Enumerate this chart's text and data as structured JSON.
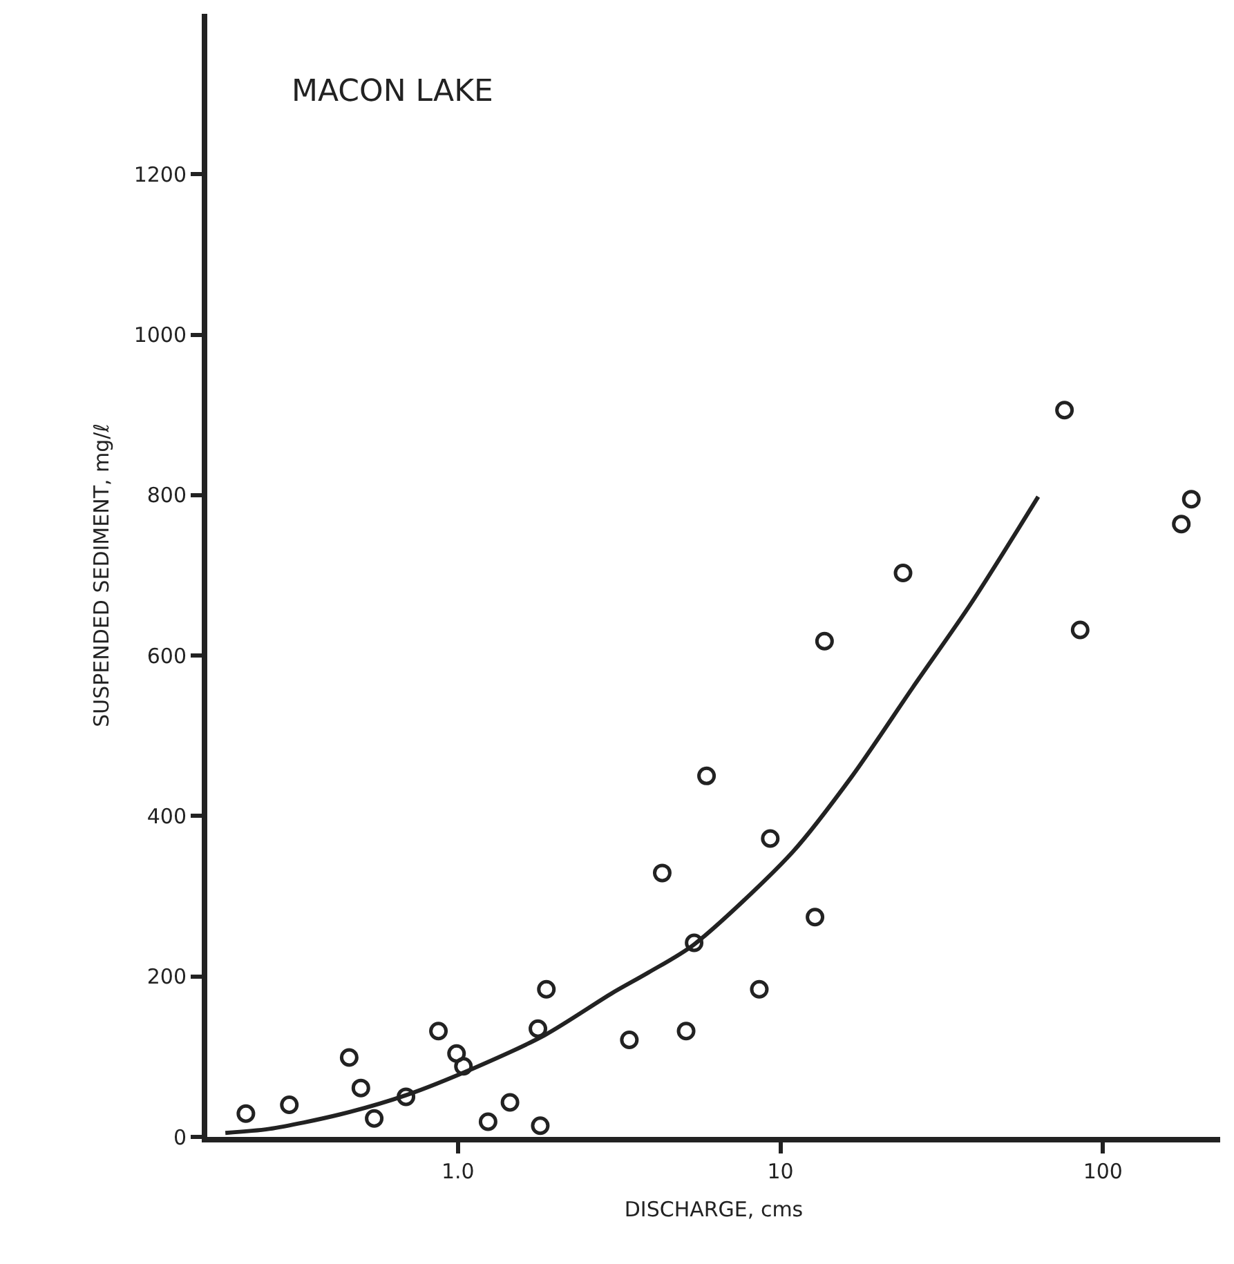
{
  "chart_data": {
    "type": "scatter",
    "xlabel": "DISCHARGE, cms",
    "ylabel": "SUSPENDED SEDIMENT, mg/ℓ",
    "annotations": [
      "MACON LAKE"
    ],
    "log": "x",
    "xlim": [
      0.167,
      231
    ],
    "ylim": [
      0,
      1400
    ],
    "xticks": [
      {
        "value": 1,
        "label": "1.0"
      },
      10,
      100
    ],
    "yticks": [
      0,
      200,
      400,
      600,
      800,
      1000,
      1200
    ],
    "marker": "circle",
    "series": [
      {
        "color": "#222222",
        "x": [
          0.22,
          0.3,
          0.46,
          0.5,
          0.55,
          0.69,
          0.87,
          0.99,
          1.04,
          1.24,
          1.45,
          1.8,
          1.77,
          1.88,
          3.4,
          5.1,
          8.6,
          5.4,
          12.8,
          4.3,
          5.9,
          9.3,
          13.7,
          24,
          76,
          85,
          175,
          188
        ],
        "values": [
          29,
          40,
          99,
          61,
          23,
          50,
          132,
          104,
          88,
          19,
          43,
          14,
          135,
          184,
          121,
          132,
          184,
          242,
          274,
          329,
          450,
          372,
          618,
          703,
          906,
          632,
          764,
          795
        ]
      },
      {
        "type": "line",
        "color": "#222222",
        "marker": "none",
        "x": [
          0.19,
          0.26,
          0.43,
          0.69,
          1.14,
          1.86,
          3.0,
          3.9,
          5.4,
          10.9,
          16.7,
          25.7,
          39,
          63
        ],
        "values": [
          5,
          10,
          28,
          52,
          87,
          127,
          179,
          205,
          240,
          355,
          450,
          560,
          665,
          798
        ]
      }
    ]
  }
}
